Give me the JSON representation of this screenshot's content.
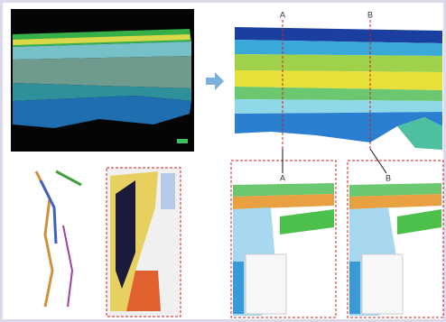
{
  "section_labels": {
    "top_a": "A",
    "top_b": "B",
    "bottom_a": "A",
    "bottom_b": "B"
  }
}
